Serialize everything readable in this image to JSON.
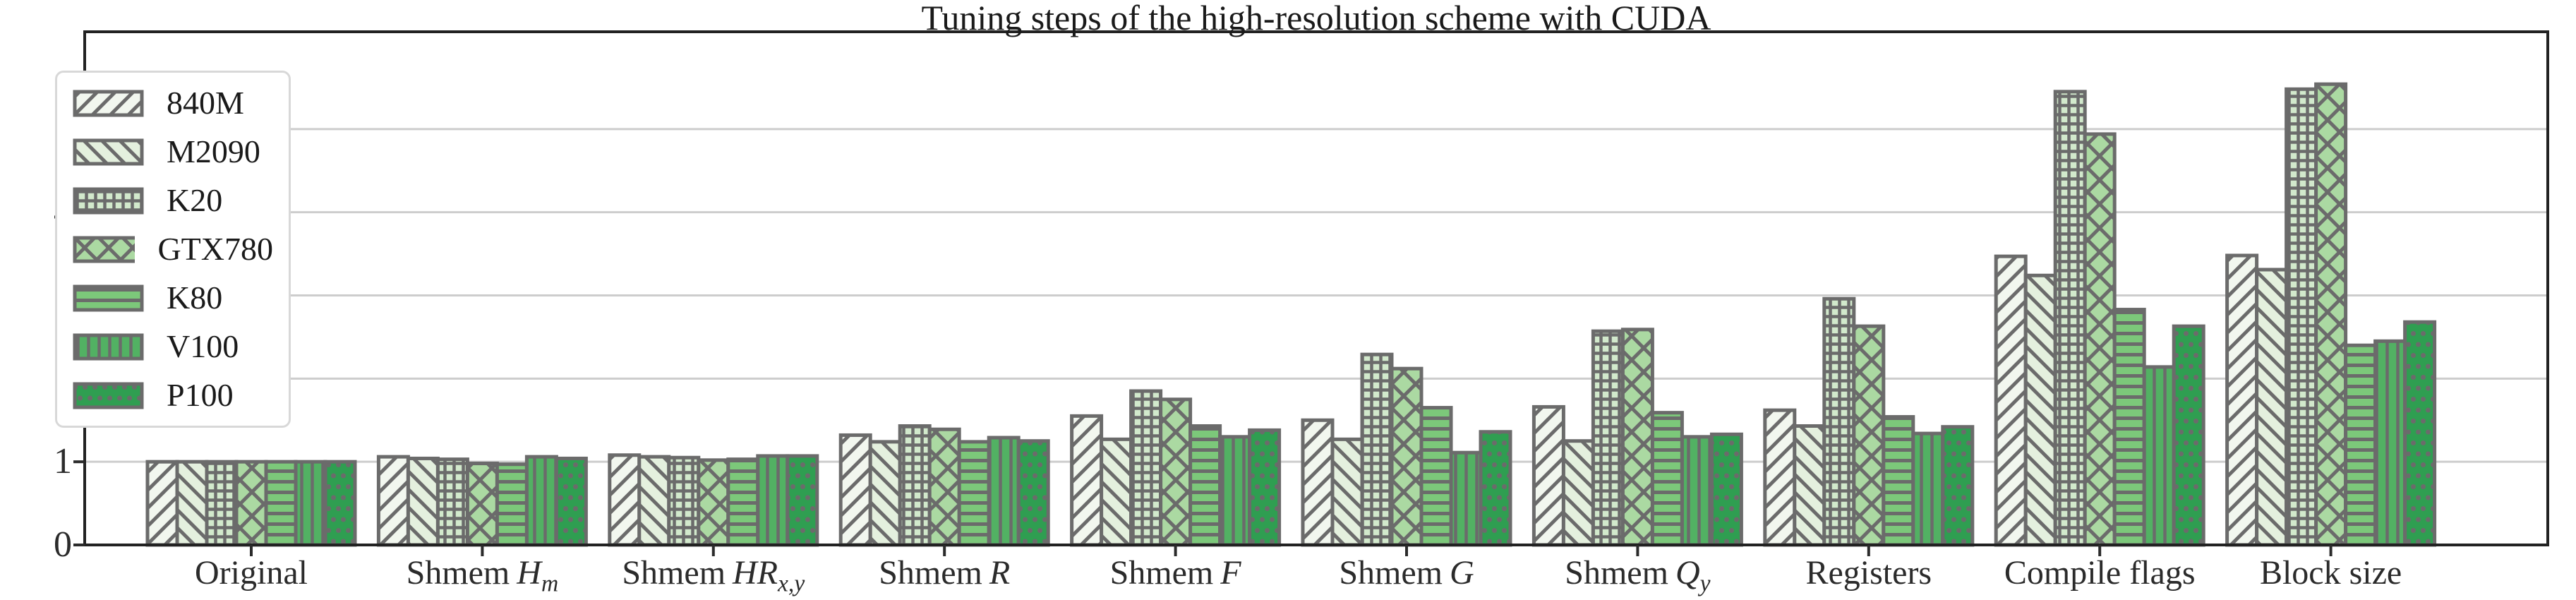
{
  "figure": {
    "background": "#ffffff"
  },
  "chart_data": {
    "type": "bar",
    "title": "Tuning steps of the high-resolution scheme with CUDA",
    "categories": [
      {
        "label": "Original"
      },
      {
        "label": "Shmem",
        "math": "H",
        "sub": "m"
      },
      {
        "label": "Shmem",
        "math": "HR",
        "sub": "x,y"
      },
      {
        "label": "Shmem",
        "math": "R"
      },
      {
        "label": "Shmem",
        "math": "F"
      },
      {
        "label": "Shmem",
        "math": "G"
      },
      {
        "label": "Shmem",
        "math": "Q",
        "sub": "y"
      },
      {
        "label": "Registers"
      },
      {
        "label": "Compile flags"
      },
      {
        "label": "Block size"
      }
    ],
    "series": [
      {
        "name": "840M",
        "color": "#f2f7ef",
        "hatch": "/",
        "values": [
          1.0,
          1.06,
          1.08,
          1.32,
          1.55,
          1.5,
          1.66,
          1.62,
          3.47,
          3.48
        ]
      },
      {
        "name": "M2090",
        "color": "#e4f0de",
        "hatch": "\\",
        "values": [
          1.0,
          1.04,
          1.06,
          1.24,
          1.27,
          1.27,
          1.25,
          1.43,
          3.24,
          3.31
        ]
      },
      {
        "name": "K20",
        "color": "#d2e9cc",
        "hatch": "+",
        "values": [
          1.0,
          1.03,
          1.05,
          1.43,
          1.85,
          2.29,
          2.57,
          2.96,
          5.45,
          5.48
        ]
      },
      {
        "name": "GTX780",
        "color": "#abd9a2",
        "hatch": "x",
        "values": [
          1.0,
          0.98,
          1.02,
          1.39,
          1.75,
          2.12,
          2.59,
          2.63,
          4.94,
          5.54
        ]
      },
      {
        "name": "K80",
        "color": "#7cc87a",
        "hatch": "-",
        "values": [
          1.0,
          0.97,
          1.03,
          1.24,
          1.43,
          1.65,
          1.59,
          1.54,
          2.83,
          2.4
        ]
      },
      {
        "name": "V100",
        "color": "#52b163",
        "hatch": "|",
        "values": [
          1.0,
          1.06,
          1.07,
          1.29,
          1.3,
          1.11,
          1.3,
          1.34,
          2.14,
          2.45
        ]
      },
      {
        "name": "P100",
        "color": "#2f9e51",
        "hatch": ".",
        "values": [
          1.0,
          1.04,
          1.07,
          1.25,
          1.38,
          1.36,
          1.33,
          1.42,
          2.63,
          2.68
        ]
      }
    ],
    "ylim": [
      0,
      6.17
    ],
    "yticks": [
      0,
      1,
      2,
      3,
      4,
      5
    ],
    "grid": "horizontal",
    "legend_position": "upper left",
    "colors": {
      "bar_edge": "#6b6b6b",
      "hatch": "#6b6b6b",
      "gridline": "#cdcdcd",
      "spine": "#222222",
      "tick": "#2b2b2b",
      "text": "#1a1a1a",
      "legend_border": "#d8d8d8",
      "legend_bg": "#ffffff"
    }
  }
}
